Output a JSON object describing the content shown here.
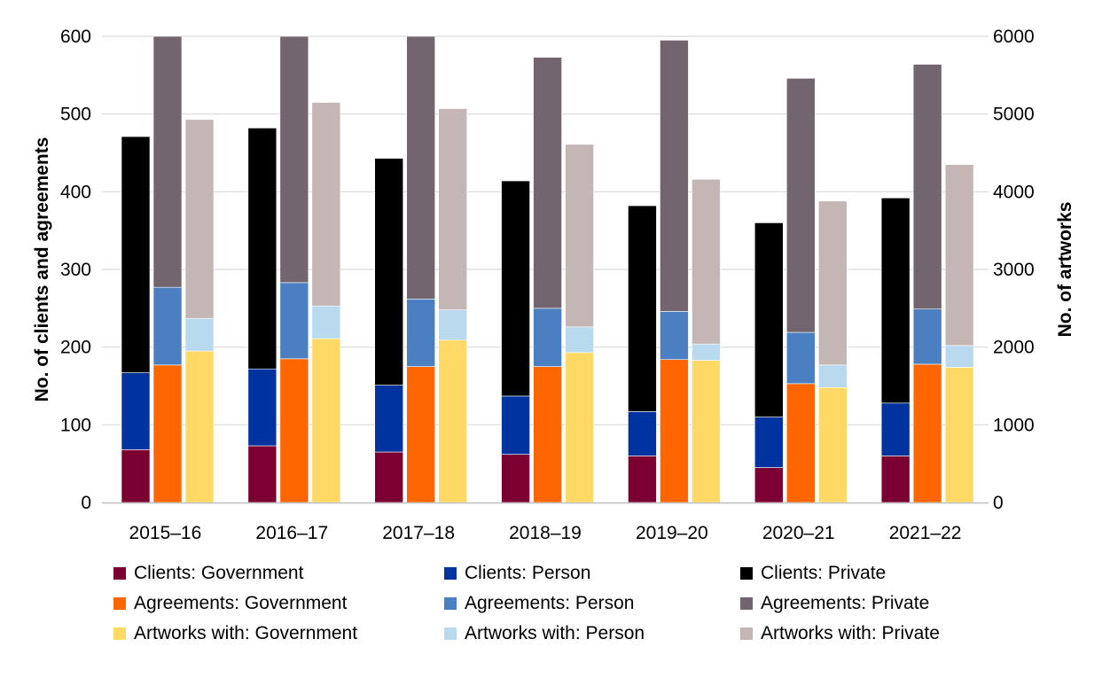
{
  "chart_data": {
    "type": "bar",
    "subtype": "grouped-stacked",
    "categories": [
      "2015–16",
      "2016–17",
      "2017–18",
      "2018–19",
      "2019–20",
      "2020–21",
      "2021–22"
    ],
    "y_left": {
      "label": "No. of clients and agreements",
      "range": [
        0,
        600
      ],
      "ticks": [
        "0",
        "100",
        "200",
        "300",
        "400",
        "500",
        "600"
      ]
    },
    "y_right": {
      "label": "No. of artworks",
      "range": [
        0,
        6000
      ],
      "ticks": [
        "0",
        "1000",
        "2000",
        "3000",
        "4000",
        "5000",
        "6000"
      ]
    },
    "grid": true,
    "legend_position": "bottom",
    "stacks": [
      {
        "name": "Clients",
        "axis": "left",
        "series": [
          {
            "name": "Clients: Government",
            "color": "#7b0031",
            "values": [
              68,
              73,
              65,
              62,
              60,
              45,
              60
            ]
          },
          {
            "name": "Clients: Person",
            "color": "#0033a0",
            "values": [
              99,
              99,
              86,
              75,
              57,
              65,
              68
            ]
          },
          {
            "name": "Clients: Private",
            "color": "#000000",
            "values": [
              304,
              310,
              292,
              277,
              265,
              250,
              264
            ]
          }
        ]
      },
      {
        "name": "Agreements",
        "axis": "left",
        "series": [
          {
            "name": "Agreements: Government",
            "color": "#ff6600",
            "values": [
              177,
              185,
              175,
              175,
              184,
              153,
              178
            ]
          },
          {
            "name": "Agreements: Person",
            "color": "#4a7fc1",
            "values": [
              100,
              98,
              87,
              75,
              62,
              66,
              71
            ]
          },
          {
            "name": "Agreements: Private",
            "color": "#726570",
            "values": [
              323,
              317,
              338,
              323,
              349,
              327,
              315
            ]
          }
        ]
      },
      {
        "name": "Artworks",
        "axis": "right",
        "series": [
          {
            "name": "Artworks with: Government",
            "color": "#ffd966",
            "values": [
              1950,
              2110,
              2090,
              1930,
              1830,
              1480,
              1740
            ]
          },
          {
            "name": "Artworks with: Person",
            "color": "#b8d9ee",
            "values": [
              420,
              420,
              390,
              330,
              210,
              290,
              280
            ]
          },
          {
            "name": "Artworks with: Private",
            "color": "#c3b6b4",
            "values": [
              2560,
              2620,
              2590,
              2350,
              2120,
              2110,
              2330
            ]
          }
        ]
      }
    ],
    "legend": [
      "Clients: Government",
      "Clients: Person",
      "Clients: Private",
      "Agreements: Government",
      "Agreements: Person",
      "Agreements: Private",
      "Artworks with: Government",
      "Artworks with: Person",
      "Artworks with: Private"
    ]
  }
}
